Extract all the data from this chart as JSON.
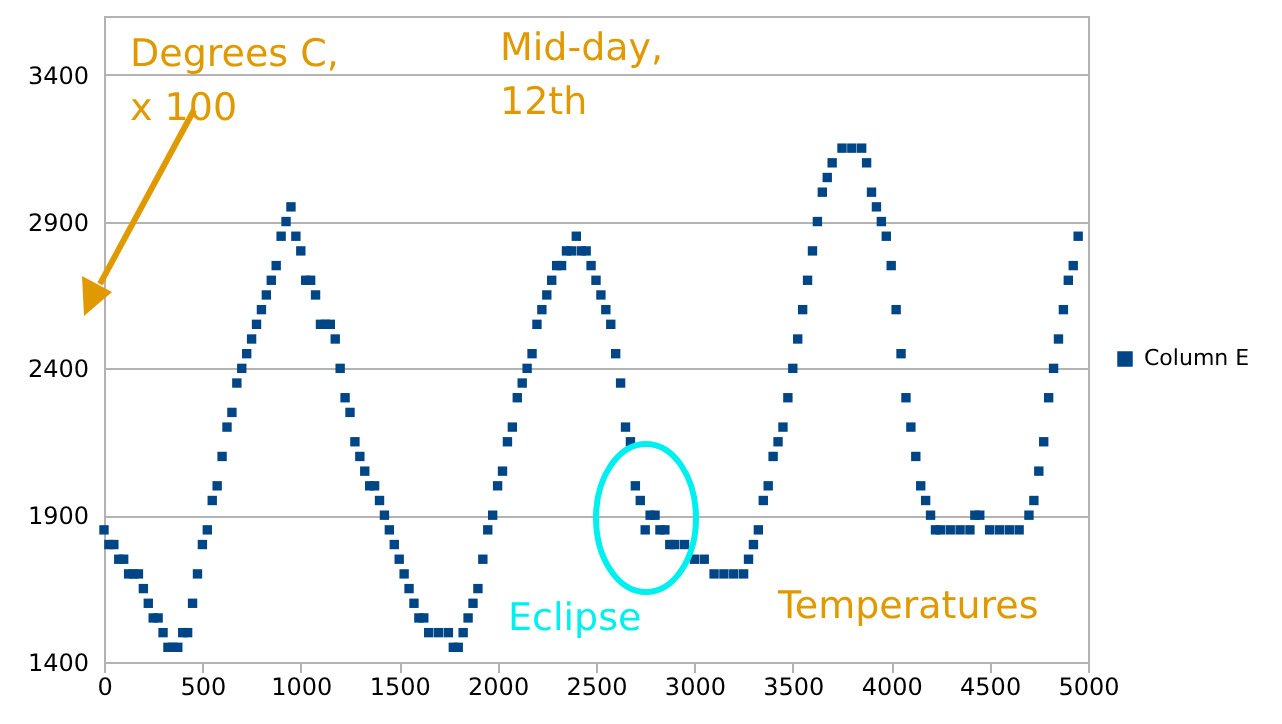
{
  "chart_data": {
    "type": "scatter",
    "marker": "square",
    "grid": "y",
    "legend": "right",
    "xlim": [
      0,
      5000
    ],
    "xticks": [
      0,
      500,
      1000,
      1500,
      2000,
      2500,
      3000,
      3500,
      4000,
      4500,
      5000
    ],
    "ylim": [
      1400,
      3600
    ],
    "yticks": [
      1400,
      1900,
      2400,
      2900,
      3400
    ],
    "annotations": [
      "Degrees C,\nx 100",
      "Mid-day,\n12th",
      "Eclipse",
      "Temperatures"
    ],
    "series": [
      {
        "name": "Column E",
        "color": "#004586",
        "x": [
          0,
          25,
          50,
          75,
          100,
          125,
          150,
          175,
          200,
          225,
          250,
          275,
          300,
          325,
          350,
          375,
          400,
          425,
          450,
          475,
          500,
          525,
          550,
          575,
          600,
          625,
          650,
          675,
          700,
          725,
          750,
          775,
          800,
          825,
          850,
          875,
          900,
          925,
          950,
          975,
          1000,
          1025,
          1050,
          1075,
          1100,
          1125,
          1150,
          1175,
          1200,
          1225,
          1250,
          1275,
          1300,
          1325,
          1350,
          1375,
          1400,
          1425,
          1450,
          1475,
          1500,
          1525,
          1550,
          1575,
          1600,
          1625,
          1650,
          1700,
          1750,
          1775,
          1800,
          1825,
          1850,
          1875,
          1900,
          1925,
          1950,
          1975,
          2000,
          2025,
          2050,
          2075,
          2100,
          2125,
          2150,
          2175,
          2200,
          2225,
          2250,
          2275,
          2300,
          2325,
          2350,
          2375,
          2400,
          2425,
          2450,
          2475,
          2500,
          2525,
          2550,
          2575,
          2600,
          2625,
          2650,
          2675,
          2700,
          2725,
          2750,
          2775,
          2800,
          2825,
          2850,
          2875,
          2900,
          2950,
          3000,
          3050,
          3100,
          3150,
          3200,
          3250,
          3275,
          3300,
          3325,
          3350,
          3375,
          3400,
          3425,
          3450,
          3475,
          3500,
          3525,
          3550,
          3575,
          3600,
          3625,
          3650,
          3675,
          3700,
          3750,
          3800,
          3850,
          3875,
          3900,
          3925,
          3950,
          3975,
          4000,
          4025,
          4050,
          4075,
          4100,
          4125,
          4150,
          4175,
          4200,
          4225,
          4250,
          4300,
          4350,
          4400,
          4425,
          4450,
          4500,
          4550,
          4600,
          4650,
          4700,
          4725,
          4750,
          4775,
          4800,
          4825,
          4850,
          4875,
          4900,
          4925,
          4950
        ],
        "values": [
          1850,
          1800,
          1800,
          1750,
          1750,
          1700,
          1700,
          1700,
          1650,
          1600,
          1550,
          1550,
          1500,
          1450,
          1450,
          1450,
          1500,
          1500,
          1600,
          1700,
          1800,
          1850,
          1950,
          2000,
          2100,
          2200,
          2250,
          2350,
          2400,
          2450,
          2500,
          2550,
          2600,
          2650,
          2700,
          2750,
          2850,
          2900,
          2950,
          2850,
          2800,
          2700,
          2700,
          2650,
          2550,
          2550,
          2550,
          2500,
          2400,
          2300,
          2250,
          2150,
          2100,
          2050,
          2000,
          2000,
          1950,
          1900,
          1850,
          1800,
          1750,
          1700,
          1650,
          1600,
          1550,
          1550,
          1500,
          1500,
          1500,
          1450,
          1450,
          1500,
          1550,
          1600,
          1650,
          1750,
          1850,
          1900,
          2000,
          2050,
          2150,
          2200,
          2300,
          2350,
          2400,
          2450,
          2550,
          2600,
          2650,
          2700,
          2750,
          2750,
          2800,
          2800,
          2850,
          2800,
          2800,
          2750,
          2700,
          2650,
          2600,
          2550,
          2450,
          2350,
          2200,
          2150,
          2000,
          1950,
          1850,
          1900,
          1900,
          1850,
          1850,
          1800,
          1800,
          1800,
          1750,
          1750,
          1700,
          1700,
          1700,
          1700,
          1750,
          1800,
          1850,
          1950,
          2000,
          2100,
          2150,
          2200,
          2300,
          2400,
          2500,
          2600,
          2700,
          2800,
          2900,
          3000,
          3050,
          3100,
          3150,
          3150,
          3150,
          3100,
          3000,
          2950,
          2900,
          2850,
          2750,
          2600,
          2450,
          2300,
          2200,
          2100,
          2000,
          1950,
          1900,
          1850,
          1850,
          1850,
          1850,
          1850,
          1900,
          1900,
          1850,
          1850,
          1850,
          1850,
          1900,
          1950,
          2050,
          2150,
          2300,
          2400,
          2500,
          2600,
          2700,
          2750,
          2850
        ]
      }
    ]
  }
}
